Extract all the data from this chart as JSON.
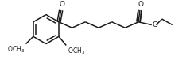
{
  "bg_color": "#ffffff",
  "line_color": "#1a1a1a",
  "line_width": 1.1,
  "text_color": "#1a1a1a",
  "figsize": [
    2.39,
    0.76
  ],
  "dpi": 100,
  "xlim": [
    0,
    239
  ],
  "ylim": [
    0,
    76
  ]
}
